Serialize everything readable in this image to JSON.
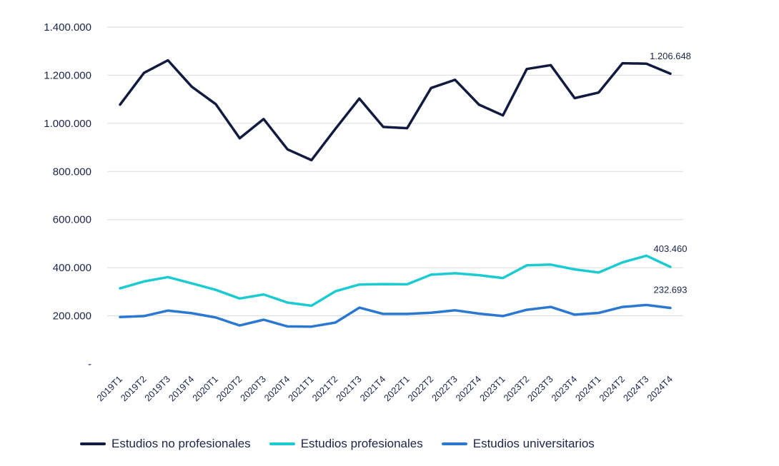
{
  "chart_data": {
    "type": "line",
    "categories": [
      "2019T1",
      "2019T2",
      "2019T3",
      "2019T4",
      "2020T1",
      "2020T2",
      "2020T3",
      "2020T4",
      "2021T1",
      "2021T2",
      "2021T3",
      "2021T4",
      "2022T1",
      "2022T2",
      "2022T3",
      "2022T4",
      "2023T1",
      "2023T2",
      "2023T3",
      "2023T4",
      "2024T1",
      "2024T2",
      "2024T3",
      "2024T4"
    ],
    "ylim": [
      0,
      1400000
    ],
    "yticks": [
      {
        "value": 0,
        "label": "-"
      },
      {
        "value": 200000,
        "label": "200.000"
      },
      {
        "value": 400000,
        "label": "400.000"
      },
      {
        "value": 600000,
        "label": "600.000"
      },
      {
        "value": 800000,
        "label": "800.000"
      },
      {
        "value": 1000000,
        "label": "1.000.000"
      },
      {
        "value": 1200000,
        "label": "1.200.000"
      },
      {
        "value": 1400000,
        "label": "1.400.000"
      }
    ],
    "grid": true,
    "legend_position": "bottom",
    "series": [
      {
        "name": "Estudios no profesionales",
        "color": "#111a3f",
        "end_label": "1.206.648",
        "values": [
          1078000,
          1210000,
          1262000,
          1152000,
          1080000,
          938000,
          1018000,
          892000,
          847000,
          977000,
          1103000,
          985000,
          980000,
          1147000,
          1181000,
          1078000,
          1033000,
          1226000,
          1242000,
          1105000,
          1128000,
          1250000,
          1248000,
          1206648
        ]
      },
      {
        "name": "Estudios profesionales",
        "color": "#1ccbcf",
        "end_label": "403.460",
        "values": [
          314000,
          343000,
          361000,
          335000,
          308000,
          272000,
          289000,
          255000,
          242000,
          302000,
          330000,
          332000,
          331000,
          371000,
          377000,
          369000,
          357000,
          410000,
          413000,
          393000,
          380000,
          422000,
          450000,
          403460
        ]
      },
      {
        "name": "Estudios universitarios",
        "color": "#2a78d2",
        "end_label": "232.693",
        "values": [
          195000,
          199000,
          222000,
          211000,
          193000,
          160000,
          184000,
          156000,
          155000,
          172000,
          234000,
          208000,
          208000,
          213000,
          223000,
          209000,
          199000,
          225000,
          237000,
          205000,
          212000,
          237000,
          245000,
          232693
        ]
      }
    ]
  }
}
